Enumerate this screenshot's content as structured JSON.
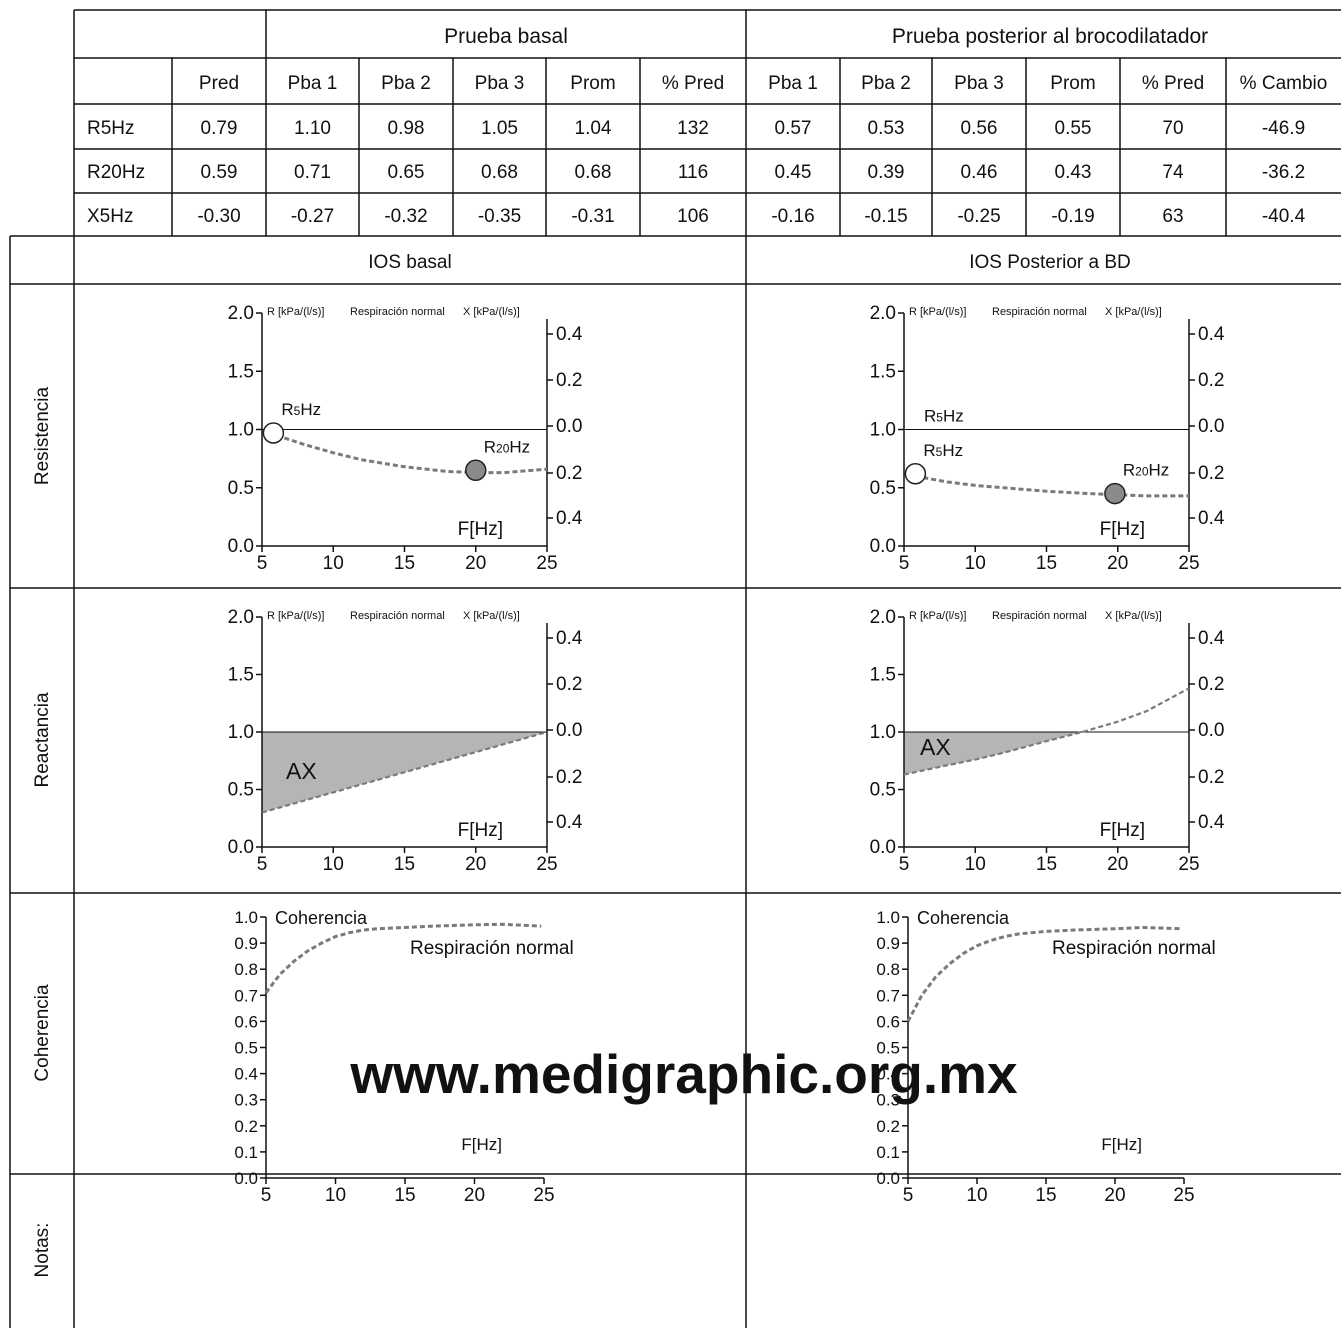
{
  "table": {
    "group_basal": "Prueba basal",
    "group_post": "Prueba posterior al brocodilatador",
    "headers": [
      "",
      "Pred",
      "Pba 1",
      "Pba 2",
      "Pba 3",
      "Prom",
      "% Pred",
      "Pba 1",
      "Pba 2",
      "Pba 3",
      "Prom",
      "% Pred",
      "% Cambio"
    ],
    "rows": [
      [
        "R5Hz",
        "0.79",
        "1.10",
        "0.98",
        "1.05",
        "1.04",
        "132",
        "0.57",
        "0.53",
        "0.56",
        "0.55",
        "70",
        "-46.9"
      ],
      [
        "R20Hz",
        "0.59",
        "0.71",
        "0.65",
        "0.68",
        "0.68",
        "116",
        "0.45",
        "0.39",
        "0.46",
        "0.43",
        "74",
        "-36.2"
      ],
      [
        "X5Hz",
        "-0.30",
        "-0.27",
        "-0.32",
        "-0.35",
        "-0.31",
        "106",
        "-0.16",
        "-0.15",
        "-0.25",
        "-0.19",
        "63",
        "-40.4"
      ]
    ]
  },
  "panels": {
    "col_basal": "IOS basal",
    "col_post": "IOS Posterior a BD",
    "row_labels": [
      "Resistencia",
      "Reactancia",
      "Coherencia",
      "Notas:"
    ]
  },
  "watermark": "www.medigraphic.org.mx",
  "colors": {
    "curve": "#7a7a7a",
    "area_fill": "#b3b5b7",
    "marker_fill": "#8a8a8a",
    "grid_line": "#222222",
    "watermark": "#d4d4d4"
  },
  "chart_data": [
    {
      "id": "resistencia-basal",
      "type": "line",
      "r_axis_label": "R [kPa/(l/s)]",
      "mode_label": "Respiración normal",
      "x_axis_label": "X [kPa/(l/s)]",
      "xlabel": "F[Hz]",
      "xlim": [
        5,
        25
      ],
      "ylim": [
        0,
        2
      ],
      "xticks": [
        "5",
        "10",
        "15",
        "20",
        "25"
      ],
      "yticks_left": [
        "0.0",
        "0.5",
        "1.0",
        "1.5",
        "2.0"
      ],
      "yticks_right": [
        "0.4",
        "0.2",
        "0.0",
        "0.2",
        "0.4"
      ],
      "reference_y": 1.0,
      "series": [
        {
          "x": [
            5.5,
            8,
            10,
            12,
            15,
            18,
            20,
            22,
            25
          ],
          "y": [
            0.97,
            0.87,
            0.8,
            0.74,
            0.68,
            0.64,
            0.63,
            0.63,
            0.66
          ]
        }
      ],
      "markers": [
        {
          "label": "R5Hz",
          "main": "R",
          "sub": "5",
          "suffix": "Hz",
          "x": 5.8,
          "y": 0.97,
          "filled": false
        },
        {
          "label": "R20Hz",
          "main": "R",
          "sub": "20",
          "suffix": "Hz",
          "x": 20,
          "y": 0.65,
          "filled": true
        }
      ]
    },
    {
      "id": "resistencia-post",
      "type": "line",
      "r_axis_label": "R [kPa/(l/s)]",
      "mode_label": "Respiración normal",
      "x_axis_label": "X [kPa/(l/s)]",
      "xlabel": "F[Hz]",
      "xlim": [
        5,
        25
      ],
      "ylim": [
        0,
        2
      ],
      "xticks": [
        "5",
        "10",
        "15",
        "20",
        "25"
      ],
      "yticks_left": [
        "0.0",
        "0.5",
        "1.0",
        "1.5",
        "2.0"
      ],
      "yticks_right": [
        "0.4",
        "0.2",
        "0.0",
        "0.2",
        "0.4"
      ],
      "reference_y": 1.0,
      "reference_label": "R5Hz",
      "reference_main": "R",
      "reference_sub": "5",
      "reference_suffix": "Hz",
      "series": [
        {
          "x": [
            5.8,
            8,
            10,
            12,
            15,
            18,
            20,
            22,
            25
          ],
          "y": [
            0.6,
            0.55,
            0.52,
            0.5,
            0.47,
            0.45,
            0.44,
            0.43,
            0.43
          ]
        }
      ],
      "markers": [
        {
          "label": "R5Hz",
          "main": "R",
          "sub": "5",
          "suffix": "Hz",
          "x": 5.8,
          "y": 0.62,
          "filled": false
        },
        {
          "label": "R20Hz",
          "main": "R",
          "sub": "20",
          "suffix": "Hz",
          "x": 19.8,
          "y": 0.45,
          "filled": true
        }
      ]
    },
    {
      "id": "reactancia-basal",
      "type": "area",
      "r_axis_label": "R [kPa/(l/s)]",
      "mode_label": "Respiración normal",
      "x_axis_label": "X [kPa/(l/s)]",
      "xlabel": "F[Hz]",
      "xlim": [
        5,
        25
      ],
      "ylim": [
        0,
        2
      ],
      "xticks": [
        "5",
        "10",
        "15",
        "20",
        "25"
      ],
      "yticks_left": [
        "0.0",
        "0.5",
        "1.0",
        "1.5",
        "2.0"
      ],
      "yticks_right": [
        "0.4",
        "0.2",
        "0.0",
        "0.2",
        "0.4"
      ],
      "reference_y": 1.0,
      "area_label": "AX",
      "series": [
        {
          "x": [
            5,
            25
          ],
          "y": [
            0.3,
            1.0
          ]
        }
      ],
      "area_end_x": 25
    },
    {
      "id": "reactancia-post",
      "type": "area",
      "r_axis_label": "R [kPa/(l/s)]",
      "mode_label": "Respiración normal",
      "x_axis_label": "X [kPa/(l/s)]",
      "xlabel": "F[Hz]",
      "xlim": [
        5,
        25
      ],
      "ylim": [
        0,
        2
      ],
      "xticks": [
        "5",
        "10",
        "15",
        "20",
        "25"
      ],
      "yticks_left": [
        "0.0",
        "0.5",
        "1.0",
        "1.5",
        "2.0"
      ],
      "yticks_right": [
        "0.4",
        "0.2",
        "0.0",
        "0.2",
        "0.4"
      ],
      "reference_y": 1.0,
      "area_label": "AX",
      "series": [
        {
          "x": [
            5,
            8,
            10,
            12,
            15,
            17.5,
            20,
            22,
            25
          ],
          "y": [
            0.63,
            0.71,
            0.76,
            0.82,
            0.92,
            1.0,
            1.09,
            1.18,
            1.38
          ]
        }
      ],
      "area_end_x": 17.5
    },
    {
      "id": "coherencia-basal",
      "type": "line",
      "title": "Coherencia",
      "mode_label": "Respiración normal",
      "xlabel": "F[Hz]",
      "xlim": [
        5,
        25
      ],
      "ylim": [
        0,
        1
      ],
      "xticks": [
        "5",
        "10",
        "15",
        "20",
        "25"
      ],
      "yticks_left": [
        "0.0",
        "0.1",
        "0.2",
        "0.3",
        "0.4",
        "0.5",
        "0.6",
        "0.7",
        "0.8",
        "0.9",
        "1.0"
      ],
      "series": [
        {
          "x": [
            5,
            6,
            7,
            8,
            9,
            10,
            11,
            12,
            13,
            15,
            17,
            20,
            22,
            24.8
          ],
          "y": [
            0.71,
            0.78,
            0.83,
            0.87,
            0.9,
            0.925,
            0.94,
            0.95,
            0.955,
            0.96,
            0.965,
            0.97,
            0.972,
            0.965
          ]
        }
      ]
    },
    {
      "id": "coherencia-post",
      "type": "line",
      "title": "Coherencia",
      "mode_label": "Respiración normal",
      "xlabel": "F[Hz]",
      "xlim": [
        5,
        25
      ],
      "ylim": [
        0,
        1
      ],
      "xticks": [
        "5",
        "10",
        "15",
        "20",
        "25"
      ],
      "yticks_left": [
        "0.0",
        "0.1",
        "0.2",
        "0.3",
        "0.4",
        "0.5",
        "0.6",
        "0.7",
        "0.8",
        "0.9",
        "1.0"
      ],
      "series": [
        {
          "x": [
            5,
            6,
            7,
            8,
            9,
            10,
            11,
            12,
            13,
            15,
            17,
            20,
            22,
            24.8
          ],
          "y": [
            0.6,
            0.7,
            0.77,
            0.82,
            0.86,
            0.89,
            0.91,
            0.925,
            0.935,
            0.945,
            0.95,
            0.955,
            0.96,
            0.955
          ]
        }
      ]
    }
  ]
}
